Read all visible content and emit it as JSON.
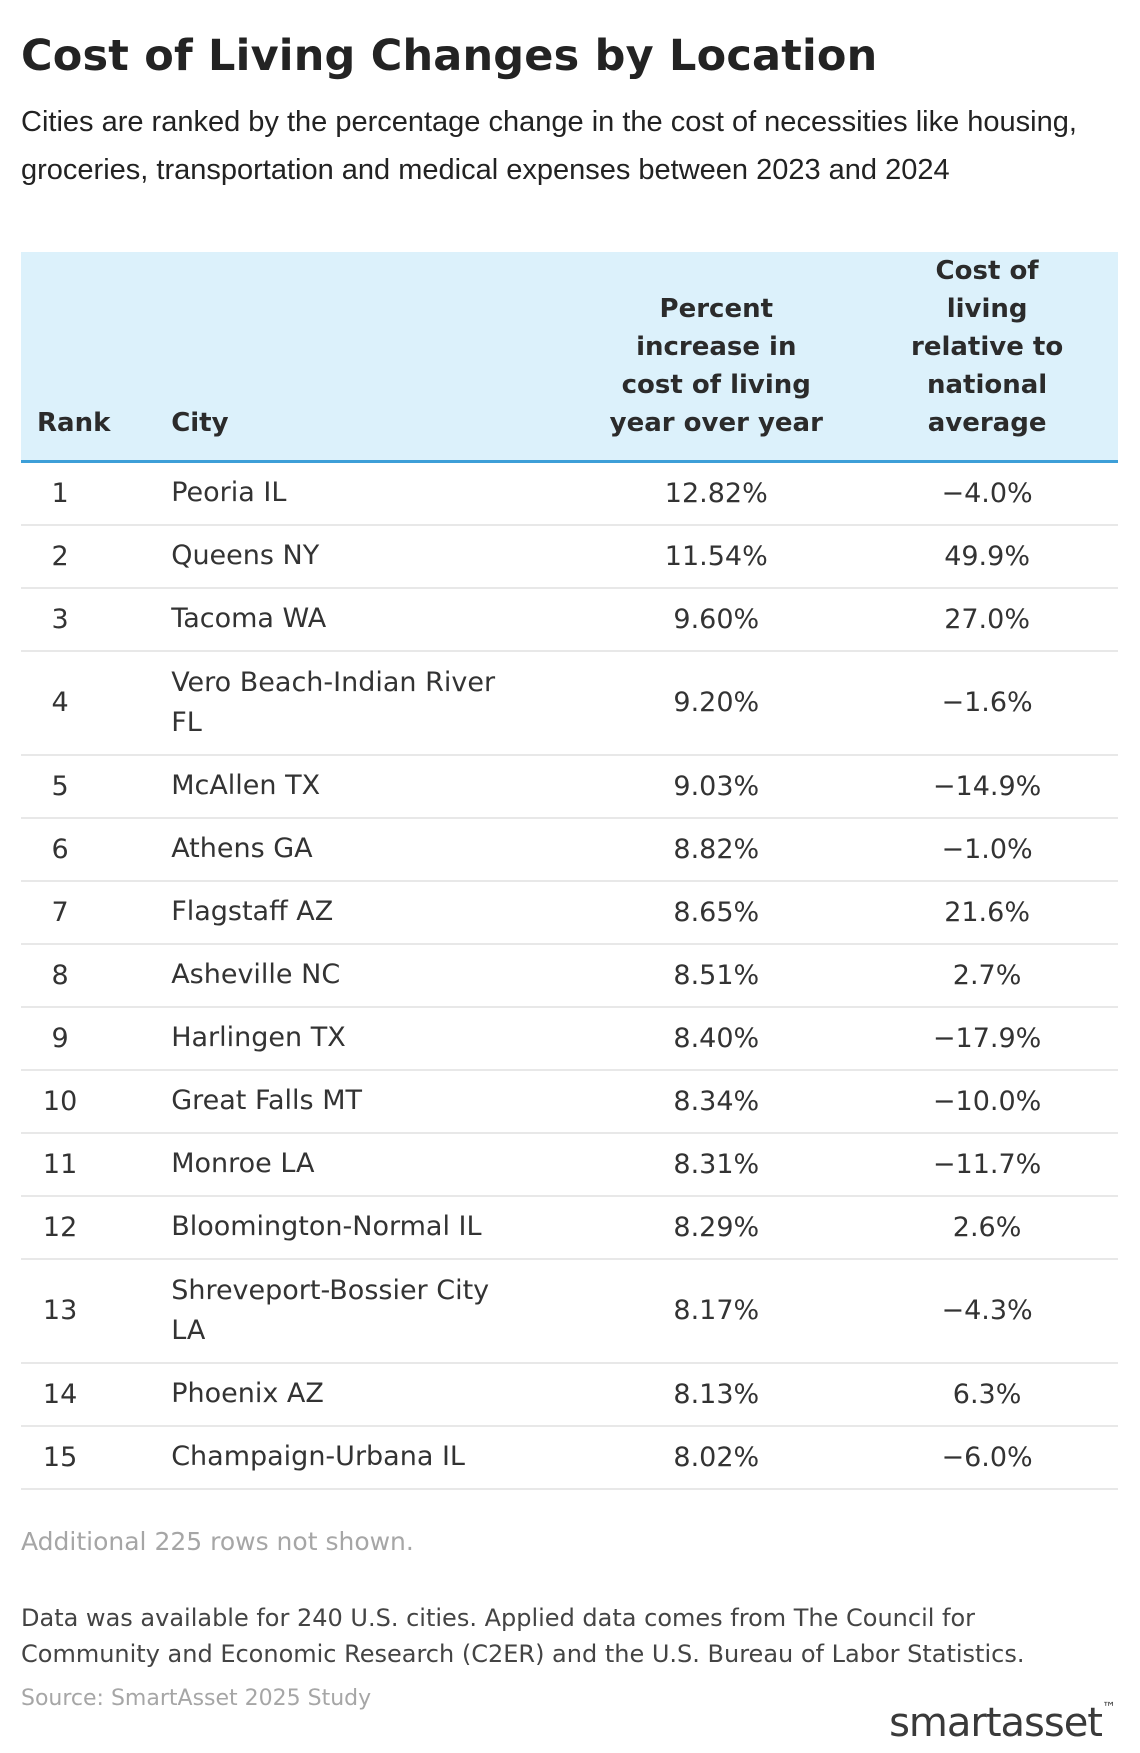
{
  "title": "Cost of Living Changes by Location",
  "subtitle": "Cities are ranked by the percentage change in the cost of necessities like housing, groceries, transportation and medical expenses between 2023 and 2024",
  "footer": {
    "rows_hidden": "Additional 225 rows not shown.",
    "note": "Data was available for 240 U.S. cities. Applied data comes from The Council for Community and Economic Research (C2ER) and the U.S. Bureau of Labor Statistics.",
    "source": "Source: SmartAsset 2025 Study",
    "logo": "smartasset",
    "logo_mark": "™"
  },
  "chart_data": {
    "type": "table",
    "columns": [
      "Rank",
      "City",
      "Percent increase in cost of living year over year",
      "Cost of living relative to national average"
    ],
    "rows": [
      {
        "rank": "1",
        "city": "Peoria IL",
        "pct": "12.82%",
        "rel": "−4.0%"
      },
      {
        "rank": "2",
        "city": "Queens NY",
        "pct": "11.54%",
        "rel": "49.9%"
      },
      {
        "rank": "3",
        "city": "Tacoma WA",
        "pct": "9.60%",
        "rel": "27.0%"
      },
      {
        "rank": "4",
        "city": "Vero Beach-Indian River FL",
        "pct": "9.20%",
        "rel": "−1.6%"
      },
      {
        "rank": "5",
        "city": "McAllen TX",
        "pct": "9.03%",
        "rel": "−14.9%"
      },
      {
        "rank": "6",
        "city": "Athens GA",
        "pct": "8.82%",
        "rel": "−1.0%"
      },
      {
        "rank": "7",
        "city": "Flagstaff AZ",
        "pct": "8.65%",
        "rel": "21.6%"
      },
      {
        "rank": "8",
        "city": "Asheville NC",
        "pct": "8.51%",
        "rel": "2.7%"
      },
      {
        "rank": "9",
        "city": "Harlingen TX",
        "pct": "8.40%",
        "rel": "−17.9%"
      },
      {
        "rank": "10",
        "city": "Great Falls MT",
        "pct": "8.34%",
        "rel": "−10.0%"
      },
      {
        "rank": "11",
        "city": "Monroe LA",
        "pct": "8.31%",
        "rel": "−11.7%"
      },
      {
        "rank": "12",
        "city": "Bloomington-Normal IL",
        "pct": "8.29%",
        "rel": "2.6%"
      },
      {
        "rank": "13",
        "city": "Shreveport-Bossier City LA",
        "pct": "8.17%",
        "rel": "−4.3%"
      },
      {
        "rank": "14",
        "city": "Phoenix AZ",
        "pct": "8.13%",
        "rel": "6.3%"
      },
      {
        "rank": "15",
        "city": "Champaign-Urbana IL",
        "pct": "8.02%",
        "rel": "−6.0%"
      }
    ]
  }
}
